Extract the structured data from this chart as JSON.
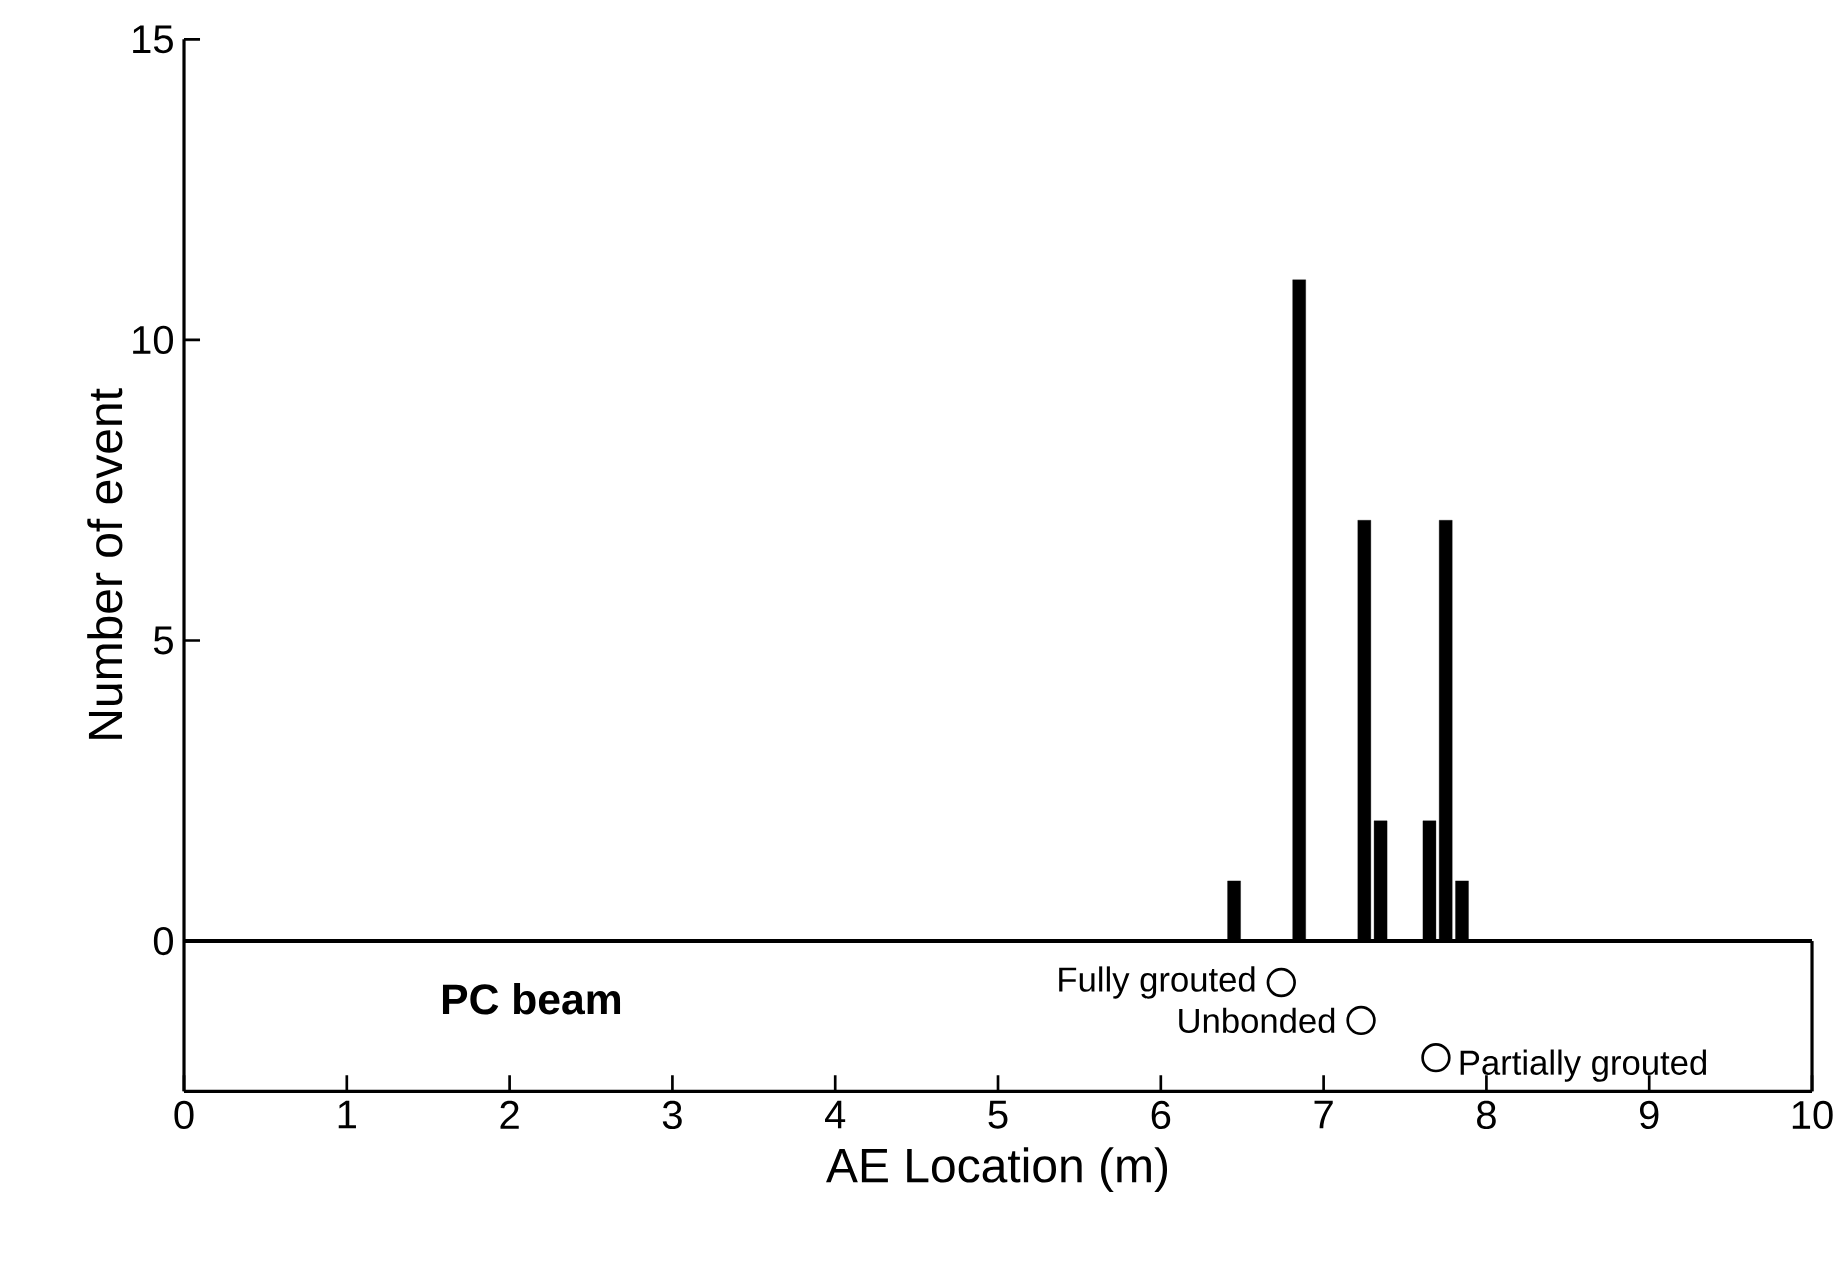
{
  "chart_data": {
    "type": "bar",
    "xlabel": "AE Location (m)",
    "ylabel": "Number of event",
    "xlim": [
      0,
      10
    ],
    "ylim": [
      -2.5,
      15
    ],
    "xticks": [
      0,
      1,
      2,
      3,
      4,
      5,
      6,
      7,
      8,
      9,
      10
    ],
    "yticks": [
      0,
      5,
      10,
      15
    ],
    "series": [
      {
        "color": "#000000",
        "x": [
          6.45,
          6.85,
          7.25,
          7.35,
          7.65,
          7.75,
          7.85
        ],
        "values": [
          1,
          11,
          7,
          2,
          2,
          7,
          1
        ]
      },
      {
        "type": "scatter",
        "color": "#000000",
        "marker": "circle",
        "x": [
          6.74,
          7.23,
          7.69
        ],
        "values": [
          -0.69,
          -1.32,
          -1.94
        ]
      }
    ],
    "ref_lines": [
      {
        "axis": "y",
        "value": 0,
        "color": "#000000"
      }
    ],
    "annotations": [
      "PC beam",
      {
        "text": "Fully grouted",
        "x": 6.74,
        "y": -0.69
      },
      {
        "text": "Unbonded",
        "x": 7.23,
        "y": -1.32
      },
      {
        "text": "Partially grouted",
        "x": 7.69,
        "y": -1.94
      }
    ]
  }
}
